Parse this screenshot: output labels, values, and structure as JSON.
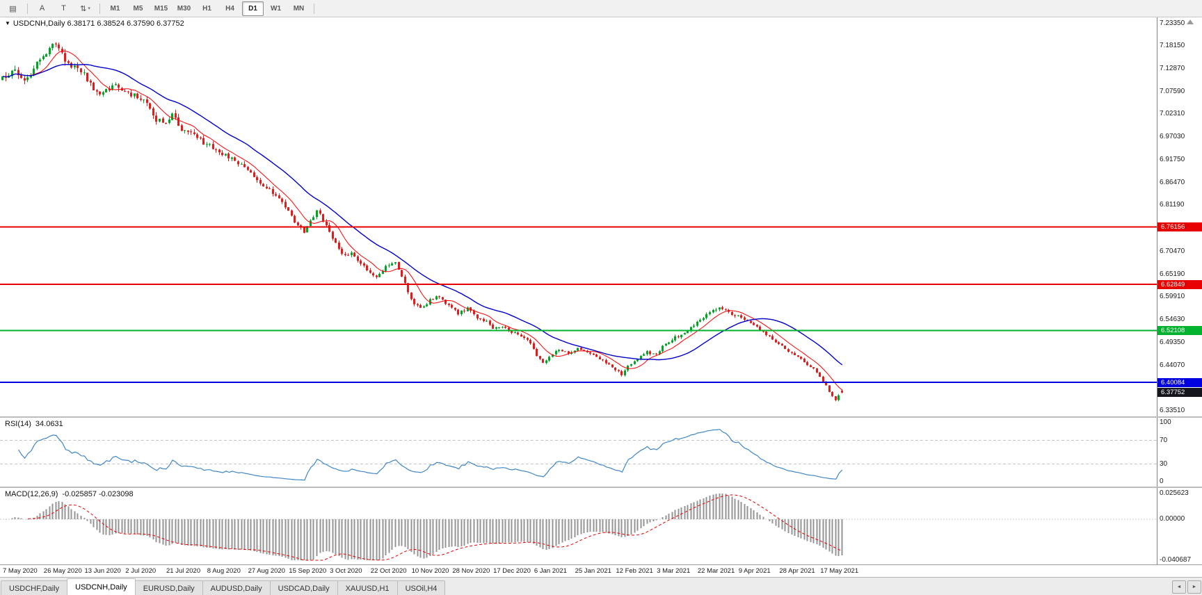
{
  "chart_header": {
    "dropdown_glyph": "▼",
    "title_text": "USDCNH,Daily 6.38171 6.38524 6.37590 6.37752"
  },
  "toolbar": {
    "left_buttons": [
      {
        "name": "chart-menu",
        "glyph": "▤",
        "sep_after": true
      },
      {
        "name": "annotation-a",
        "glyph": "A"
      },
      {
        "name": "text-tool",
        "glyph": "T"
      },
      {
        "name": "symbols-dropdown",
        "glyph": "⇅",
        "caret": true
      }
    ],
    "timeframes": [
      "M1",
      "M5",
      "M15",
      "M30",
      "H1",
      "H4",
      "D1",
      "W1",
      "MN"
    ],
    "active_timeframe": "D1"
  },
  "tabs": {
    "items": [
      "USDCHF,Daily",
      "USDCNH,Daily",
      "EURUSD,Daily",
      "AUDUSD,Daily",
      "USDCAD,Daily",
      "XAUUSD,H1",
      "USOil,H4"
    ],
    "active_index": 1,
    "scroll_left_glyph": "◄",
    "scroll_right_glyph": "►"
  },
  "chart_data": {
    "type": "candlestick",
    "symbol": "USDCNH",
    "timeframe": "Daily",
    "current_ohlc": {
      "open": 6.38171,
      "high": 6.38524,
      "low": 6.3759,
      "close": 6.37752
    },
    "candle_count": 268,
    "price_axis": {
      "top_value": 7.2335,
      "bottom_value": 6.3351,
      "tick_labels": [
        "7.23350",
        "7.18150",
        "7.12870",
        "7.07590",
        "7.02310",
        "6.97030",
        "6.91750",
        "6.86470",
        "6.81190",
        "6.75910",
        "6.70470",
        "6.65190",
        "6.59910",
        "6.54630",
        "6.49350",
        "6.44070",
        "6.33510"
      ]
    },
    "x_tick_dates": [
      "7 May 2020",
      "26 May 2020",
      "13 Jun 2020",
      "2 Jul 2020",
      "21 Jul 2020",
      "8 Aug 2020",
      "27 Aug 2020",
      "15 Sep 2020",
      "3 Oct 2020",
      "22 Oct 2020",
      "10 Nov 2020",
      "28 Nov 2020",
      "17 Dec 2020",
      "6 Jan 2021",
      "25 Jan 2021",
      "12 Feb 2021",
      "3 Mar 2021",
      "22 Mar 2021",
      "9 Apr 2021",
      "28 Apr 2021",
      "17 May 2021"
    ],
    "horizontal_lines": [
      {
        "value": 6.76156,
        "label": "6.76156",
        "color": "#e60000"
      },
      {
        "value": 6.62849,
        "label": "6.62849",
        "color": "#e60000"
      },
      {
        "value": 6.52108,
        "label": "6.52108",
        "color": "#00b22d"
      },
      {
        "value": 6.40084,
        "label": "6.40084",
        "color": "#0000e0"
      }
    ],
    "current_price_marker": {
      "value": 6.37752,
      "label": "6.37752",
      "bg_color": "#15151d"
    },
    "candle_colors": {
      "up": "#00a524",
      "down": "#e41b1b"
    },
    "moving_averages": [
      {
        "period": 8,
        "color": "#ff0000"
      },
      {
        "period": 25,
        "color": "#0000cc"
      }
    ],
    "close_keyframes": [
      [
        0,
        7.105
      ],
      [
        4,
        7.128
      ],
      [
        7,
        7.1
      ],
      [
        11,
        7.14
      ],
      [
        14,
        7.163
      ],
      [
        17,
        7.19
      ],
      [
        20,
        7.152
      ],
      [
        23,
        7.13
      ],
      [
        26,
        7.118
      ],
      [
        29,
        7.082
      ],
      [
        32,
        7.072
      ],
      [
        35,
        7.091
      ],
      [
        39,
        7.078
      ],
      [
        43,
        7.062
      ],
      [
        46,
        7.048
      ],
      [
        49,
        7.012
      ],
      [
        52,
        7.002
      ],
      [
        54,
        7.022
      ],
      [
        57,
        6.988
      ],
      [
        61,
        6.972
      ],
      [
        65,
        6.954
      ],
      [
        69,
        6.932
      ],
      [
        73,
        6.92
      ],
      [
        78,
        6.892
      ],
      [
        82,
        6.862
      ],
      [
        86,
        6.842
      ],
      [
        89,
        6.818
      ],
      [
        91,
        6.796
      ],
      [
        94,
        6.766
      ],
      [
        96,
        6.752
      ],
      [
        98,
        6.778
      ],
      [
        100,
        6.8
      ],
      [
        102,
        6.776
      ],
      [
        104,
        6.752
      ],
      [
        106,
        6.722
      ],
      [
        108,
        6.698
      ],
      [
        111,
        6.702
      ],
      [
        114,
        6.678
      ],
      [
        117,
        6.656
      ],
      [
        119,
        6.642
      ],
      [
        122,
        6.668
      ],
      [
        125,
        6.682
      ],
      [
        127,
        6.648
      ],
      [
        129,
        6.608
      ],
      [
        131,
        6.585
      ],
      [
        133,
        6.572
      ],
      [
        136,
        6.592
      ],
      [
        139,
        6.602
      ],
      [
        142,
        6.578
      ],
      [
        145,
        6.562
      ],
      [
        148,
        6.572
      ],
      [
        151,
        6.552
      ],
      [
        154,
        6.542
      ],
      [
        156,
        6.524
      ],
      [
        159,
        6.532
      ],
      [
        162,
        6.518
      ],
      [
        165,
        6.508
      ],
      [
        168,
        6.492
      ],
      [
        170,
        6.462
      ],
      [
        172,
        6.444
      ],
      [
        174,
        6.462
      ],
      [
        177,
        6.478
      ],
      [
        180,
        6.468
      ],
      [
        183,
        6.482
      ],
      [
        186,
        6.472
      ],
      [
        189,
        6.458
      ],
      [
        192,
        6.448
      ],
      [
        195,
        6.432
      ],
      [
        197,
        6.418
      ],
      [
        199,
        6.438
      ],
      [
        202,
        6.458
      ],
      [
        205,
        6.472
      ],
      [
        208,
        6.464
      ],
      [
        210,
        6.486
      ],
      [
        213,
        6.502
      ],
      [
        216,
        6.512
      ],
      [
        219,
        6.528
      ],
      [
        222,
        6.546
      ],
      [
        225,
        6.566
      ],
      [
        228,
        6.574
      ],
      [
        231,
        6.562
      ],
      [
        234,
        6.554
      ],
      [
        237,
        6.544
      ],
      [
        240,
        6.53
      ],
      [
        243,
        6.514
      ],
      [
        246,
        6.494
      ],
      [
        249,
        6.48
      ],
      [
        252,
        6.464
      ],
      [
        255,
        6.448
      ],
      [
        258,
        6.434
      ],
      [
        260,
        6.414
      ],
      [
        262,
        6.392
      ],
      [
        264,
        6.37
      ],
      [
        265,
        6.362
      ],
      [
        266,
        6.372
      ],
      [
        267,
        6.37752
      ]
    ],
    "indicators": {
      "rsi": {
        "name": "RSI(14)",
        "value_text": "34.0631",
        "current_value": 34.0631,
        "scale_labels": [
          "100",
          "70",
          "30",
          "0"
        ],
        "levels": [
          70,
          30
        ],
        "line_color": "#3e86c6"
      },
      "macd": {
        "name": "MACD(12,26,9)",
        "values_text": "-0.025857 -0.023098",
        "main_value": -0.025857,
        "signal_value": -0.023098,
        "scale_max": 0.025623,
        "scale_min": -0.040687,
        "scale_labels": {
          "top": "0.025623",
          "zero": "0.00000",
          "bottom": "-0.040687"
        },
        "histogram_color": "#949494",
        "signal_color": "#e60000"
      }
    }
  }
}
